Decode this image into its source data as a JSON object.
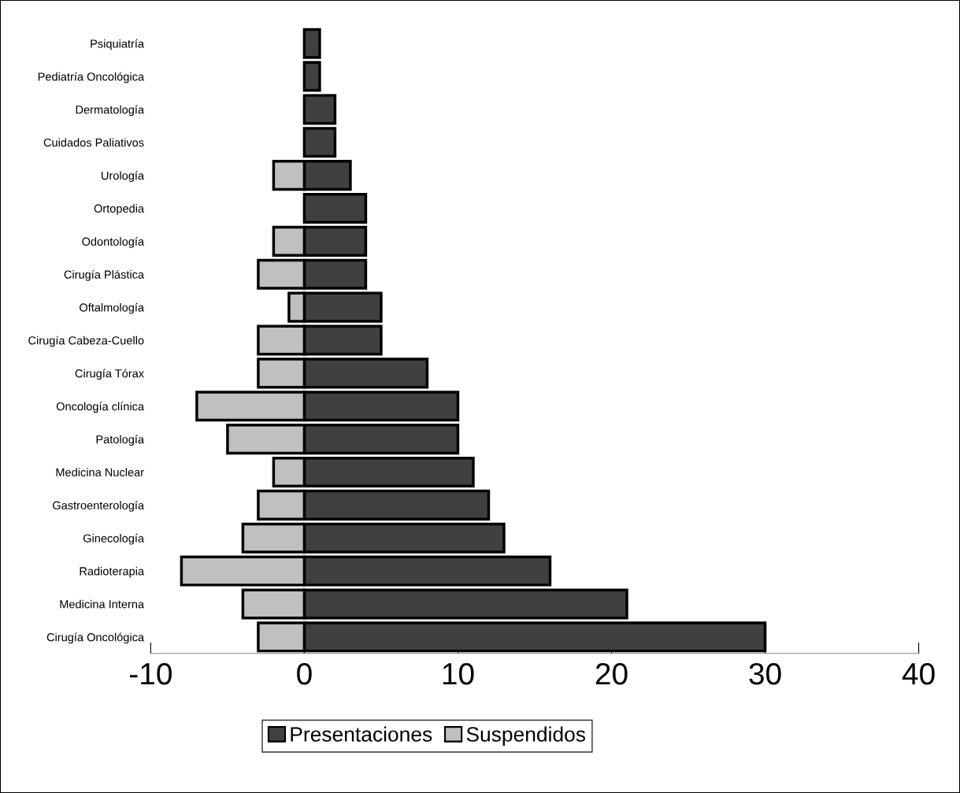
{
  "chart_data": {
    "type": "bar",
    "orientation": "horizontal",
    "stacked": true,
    "categories": [
      "Psiquiatría",
      "Pediatría Oncológica",
      "Dermatología",
      "Cuidados Paliativos",
      "Urología",
      "Ortopedia",
      "Odontología",
      "Cirugía Plástica",
      "Oftalmología",
      "Cirugía Cabeza-Cuello",
      "Cirugía Tórax",
      "Oncología clínica",
      "Patología",
      "Medicina Nuclear",
      "Gastroenterología",
      "Ginecología",
      "Radioterapia",
      "Medicina Interna",
      "Cirugía Oncológica"
    ],
    "series": [
      {
        "name": "Presentaciones",
        "color": "#404040",
        "values": [
          1,
          1,
          2,
          2,
          3,
          4,
          4,
          4,
          5,
          5,
          8,
          10,
          10,
          11,
          12,
          13,
          16,
          21,
          30
        ]
      },
      {
        "name": "Suspendidos",
        "color": "#c0c0c0",
        "values": [
          null,
          null,
          null,
          null,
          -2,
          null,
          -2,
          -3,
          -1,
          -3,
          -3,
          -7,
          -5,
          -2,
          -3,
          -4,
          -8,
          -4,
          -3
        ]
      }
    ],
    "xlim": [
      -10,
      40
    ],
    "xticks": [
      -10,
      0,
      10,
      20,
      30,
      40
    ],
    "grid": false,
    "legend": "bottom"
  }
}
